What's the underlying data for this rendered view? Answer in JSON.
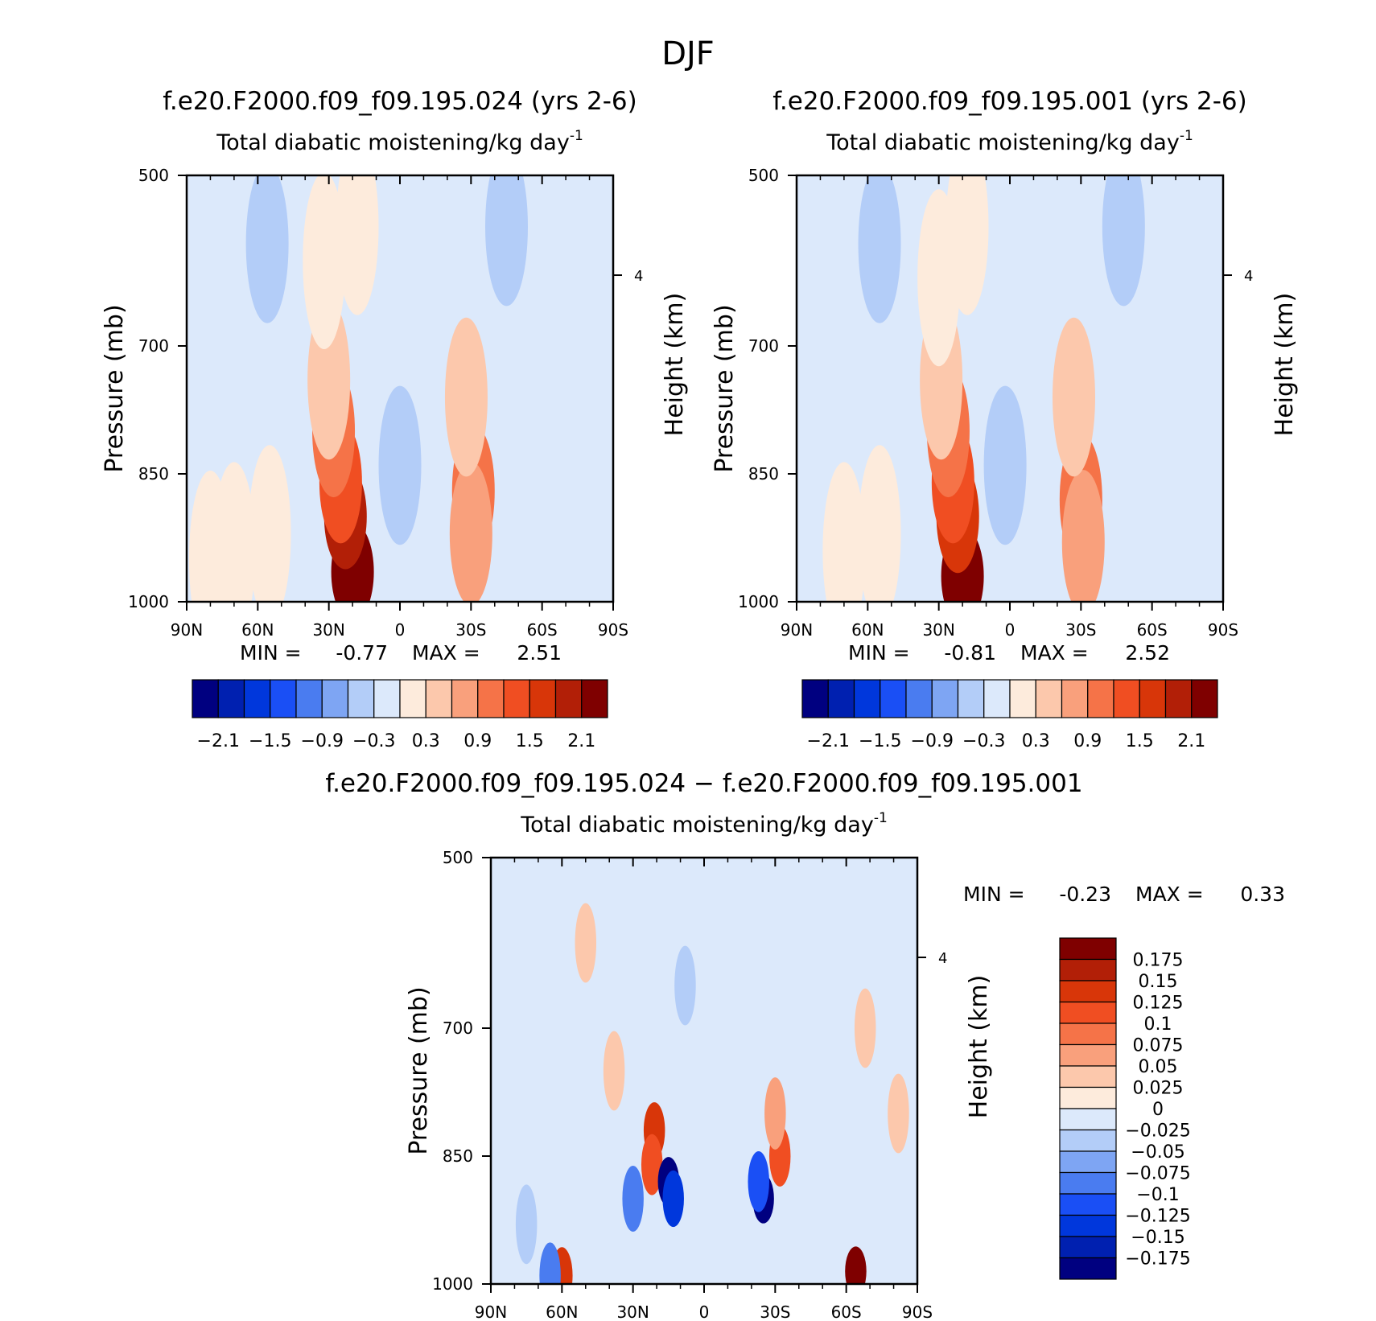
{
  "figure_title": "DJF",
  "chart_data": [
    {
      "type": "heatmap",
      "case_title": "f.e20.F2000.f09_f09.195.024 (yrs 2-6)",
      "title": "Total diabatic moistening/kg day",
      "title_exp": "-1",
      "ylabel": "Pressure (mb)",
      "ylabel_right": "Height (km)",
      "x_ticks": [
        "90N",
        "60N",
        "30N",
        "0",
        "30S",
        "60S",
        "90S"
      ],
      "y_ticks": [
        "500",
        "700",
        "850",
        "1000"
      ],
      "y_ticks_right": [
        "4"
      ],
      "ylim": [
        1000,
        500
      ],
      "min_label": "MIN =",
      "min": "-0.77",
      "max_label": "MAX =",
      "max": "2.51",
      "colorbar_labels": [
        "-2.1",
        "-1.5",
        "-0.9",
        "-0.3",
        "0.3",
        "0.9",
        "1.5",
        "2.1"
      ],
      "features": [
        {
          "lat": 20,
          "p": 965,
          "value": 2.5
        },
        {
          "lat": 23,
          "p": 900,
          "value": 1.8
        },
        {
          "lat": 25,
          "p": 860,
          "value": 1.4
        },
        {
          "lat": 28,
          "p": 800,
          "value": 0.9
        },
        {
          "lat": 30,
          "p": 740,
          "value": 0.5
        },
        {
          "lat": 32,
          "p": 600,
          "value": 0.2
        },
        {
          "lat": 18,
          "p": 560,
          "value": 0.2
        },
        {
          "lat": -31,
          "p": 870,
          "value": 0.9
        },
        {
          "lat": -30,
          "p": 920,
          "value": 0.6
        },
        {
          "lat": -28,
          "p": 760,
          "value": 0.3
        },
        {
          "lat": 55,
          "p": 920,
          "value": 0.2
        },
        {
          "lat": 70,
          "p": 940,
          "value": 0.15
        },
        {
          "lat": 80,
          "p": 950,
          "value": 0.1
        },
        {
          "lat": 0,
          "p": 840,
          "value": -0.45
        },
        {
          "lat": 56,
          "p": 580,
          "value": -0.4
        },
        {
          "lat": -45,
          "p": 560,
          "value": -0.35
        }
      ]
    },
    {
      "type": "heatmap",
      "case_title": "f.e20.F2000.f09_f09.195.001 (yrs 2-6)",
      "title": "Total diabatic moistening/kg day",
      "title_exp": "-1",
      "ylabel": "Pressure (mb)",
      "ylabel_right": "Height (km)",
      "x_ticks": [
        "90N",
        "60N",
        "30N",
        "0",
        "30S",
        "60S",
        "90S"
      ],
      "y_ticks": [
        "500",
        "700",
        "850",
        "1000"
      ],
      "y_ticks_right": [
        "4"
      ],
      "ylim": [
        1000,
        500
      ],
      "min_label": "MIN =",
      "min": "-0.81",
      "max_label": "MAX =",
      "max": "2.52",
      "colorbar_labels": [
        "-2.1",
        "-1.5",
        "-0.9",
        "-0.3",
        "0.3",
        "0.9",
        "1.5",
        "2.1"
      ],
      "features": [
        {
          "lat": 20,
          "p": 970,
          "value": 2.5
        },
        {
          "lat": 22,
          "p": 900,
          "value": 1.7
        },
        {
          "lat": 24,
          "p": 860,
          "value": 1.4
        },
        {
          "lat": 26,
          "p": 800,
          "value": 0.9
        },
        {
          "lat": 29,
          "p": 740,
          "value": 0.5
        },
        {
          "lat": 30,
          "p": 620,
          "value": 0.2
        },
        {
          "lat": 18,
          "p": 560,
          "value": 0.2
        },
        {
          "lat": -30,
          "p": 880,
          "value": 0.9
        },
        {
          "lat": -31,
          "p": 930,
          "value": 0.6
        },
        {
          "lat": -27,
          "p": 760,
          "value": 0.3
        },
        {
          "lat": 55,
          "p": 920,
          "value": 0.2
        },
        {
          "lat": 70,
          "p": 940,
          "value": 0.15
        },
        {
          "lat": 2,
          "p": 840,
          "value": -0.45
        },
        {
          "lat": 55,
          "p": 580,
          "value": -0.4
        },
        {
          "lat": -48,
          "p": 560,
          "value": -0.35
        }
      ]
    },
    {
      "type": "heatmap",
      "case_title": "f.e20.F2000.f09_f09.195.024 − f.e20.F2000.f09_f09.195.001",
      "title": "Total diabatic moistening/kg day",
      "title_exp": "-1",
      "ylabel": "Pressure (mb)",
      "ylabel_right": "Height (km)",
      "x_ticks": [
        "90N",
        "60N",
        "30N",
        "0",
        "30S",
        "60S",
        "90S"
      ],
      "y_ticks": [
        "500",
        "700",
        "850",
        "1000"
      ],
      "y_ticks_right": [
        "4"
      ],
      "ylim": [
        1000,
        500
      ],
      "min_label": "MIN =",
      "min": "-0.23",
      "max_label": "MAX =",
      "max": "0.33",
      "colorbar_labels": [
        "0.175",
        "0.15",
        "0.125",
        "0.1",
        "0.075",
        "0.05",
        "0.025",
        "0",
        "-0.025",
        "-0.05",
        "-0.075",
        "-0.1",
        "-0.125",
        "-0.15",
        "-0.175"
      ],
      "features": [
        {
          "lat": 21,
          "p": 820,
          "value": 0.15
        },
        {
          "lat": 22,
          "p": 860,
          "value": 0.11
        },
        {
          "lat": 15,
          "p": 880,
          "value": -0.2
        },
        {
          "lat": 13,
          "p": 900,
          "value": -0.14
        },
        {
          "lat": -25,
          "p": 900,
          "value": -0.18
        },
        {
          "lat": -23,
          "p": 880,
          "value": -0.12
        },
        {
          "lat": 30,
          "p": 900,
          "value": -0.09
        },
        {
          "lat": -32,
          "p": 850,
          "value": 0.1
        },
        {
          "lat": -30,
          "p": 800,
          "value": 0.06
        },
        {
          "lat": 38,
          "p": 750,
          "value": 0.04
        },
        {
          "lat": 60,
          "p": 990,
          "value": 0.15
        },
        {
          "lat": -64,
          "p": 985,
          "value": 0.2
        },
        {
          "lat": -82,
          "p": 800,
          "value": 0.035
        },
        {
          "lat": -68,
          "p": 700,
          "value": 0.03
        },
        {
          "lat": 75,
          "p": 930,
          "value": -0.05
        },
        {
          "lat": 65,
          "p": 990,
          "value": -0.1
        },
        {
          "lat": 50,
          "p": 600,
          "value": 0.03
        },
        {
          "lat": 8,
          "p": 650,
          "value": -0.035
        }
      ]
    }
  ]
}
